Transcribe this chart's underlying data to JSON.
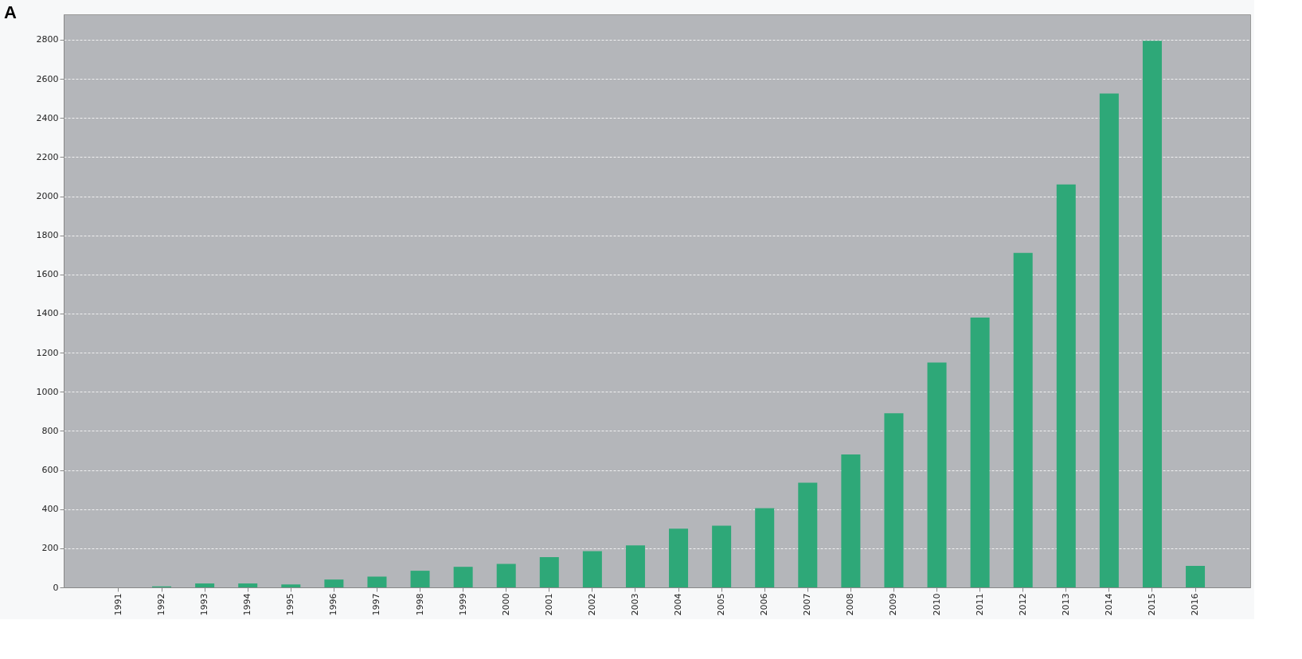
{
  "chart_data": {
    "type": "bar",
    "title": "A",
    "categories": [
      "1991",
      "1992",
      "1993",
      "1994",
      "1995",
      "1996",
      "1997",
      "1998",
      "1999",
      "2000",
      "2001",
      "2002",
      "2003",
      "2004",
      "2005",
      "2006",
      "2007",
      "2008",
      "2009",
      "2010",
      "2011",
      "2012",
      "2013",
      "2014",
      "2015",
      "2016"
    ],
    "values": [
      0,
      5,
      20,
      20,
      15,
      40,
      55,
      85,
      105,
      120,
      155,
      185,
      215,
      300,
      315,
      405,
      535,
      680,
      890,
      1150,
      1380,
      1710,
      2060,
      2525,
      2795,
      110
    ],
    "color": "#2ea878",
    "ylim": [
      0,
      2930
    ],
    "yticks": [
      0,
      200,
      400,
      600,
      800,
      1000,
      1200,
      1400,
      1600,
      1800,
      2000,
      2200,
      2400,
      2600,
      2800
    ],
    "grid": "y"
  }
}
